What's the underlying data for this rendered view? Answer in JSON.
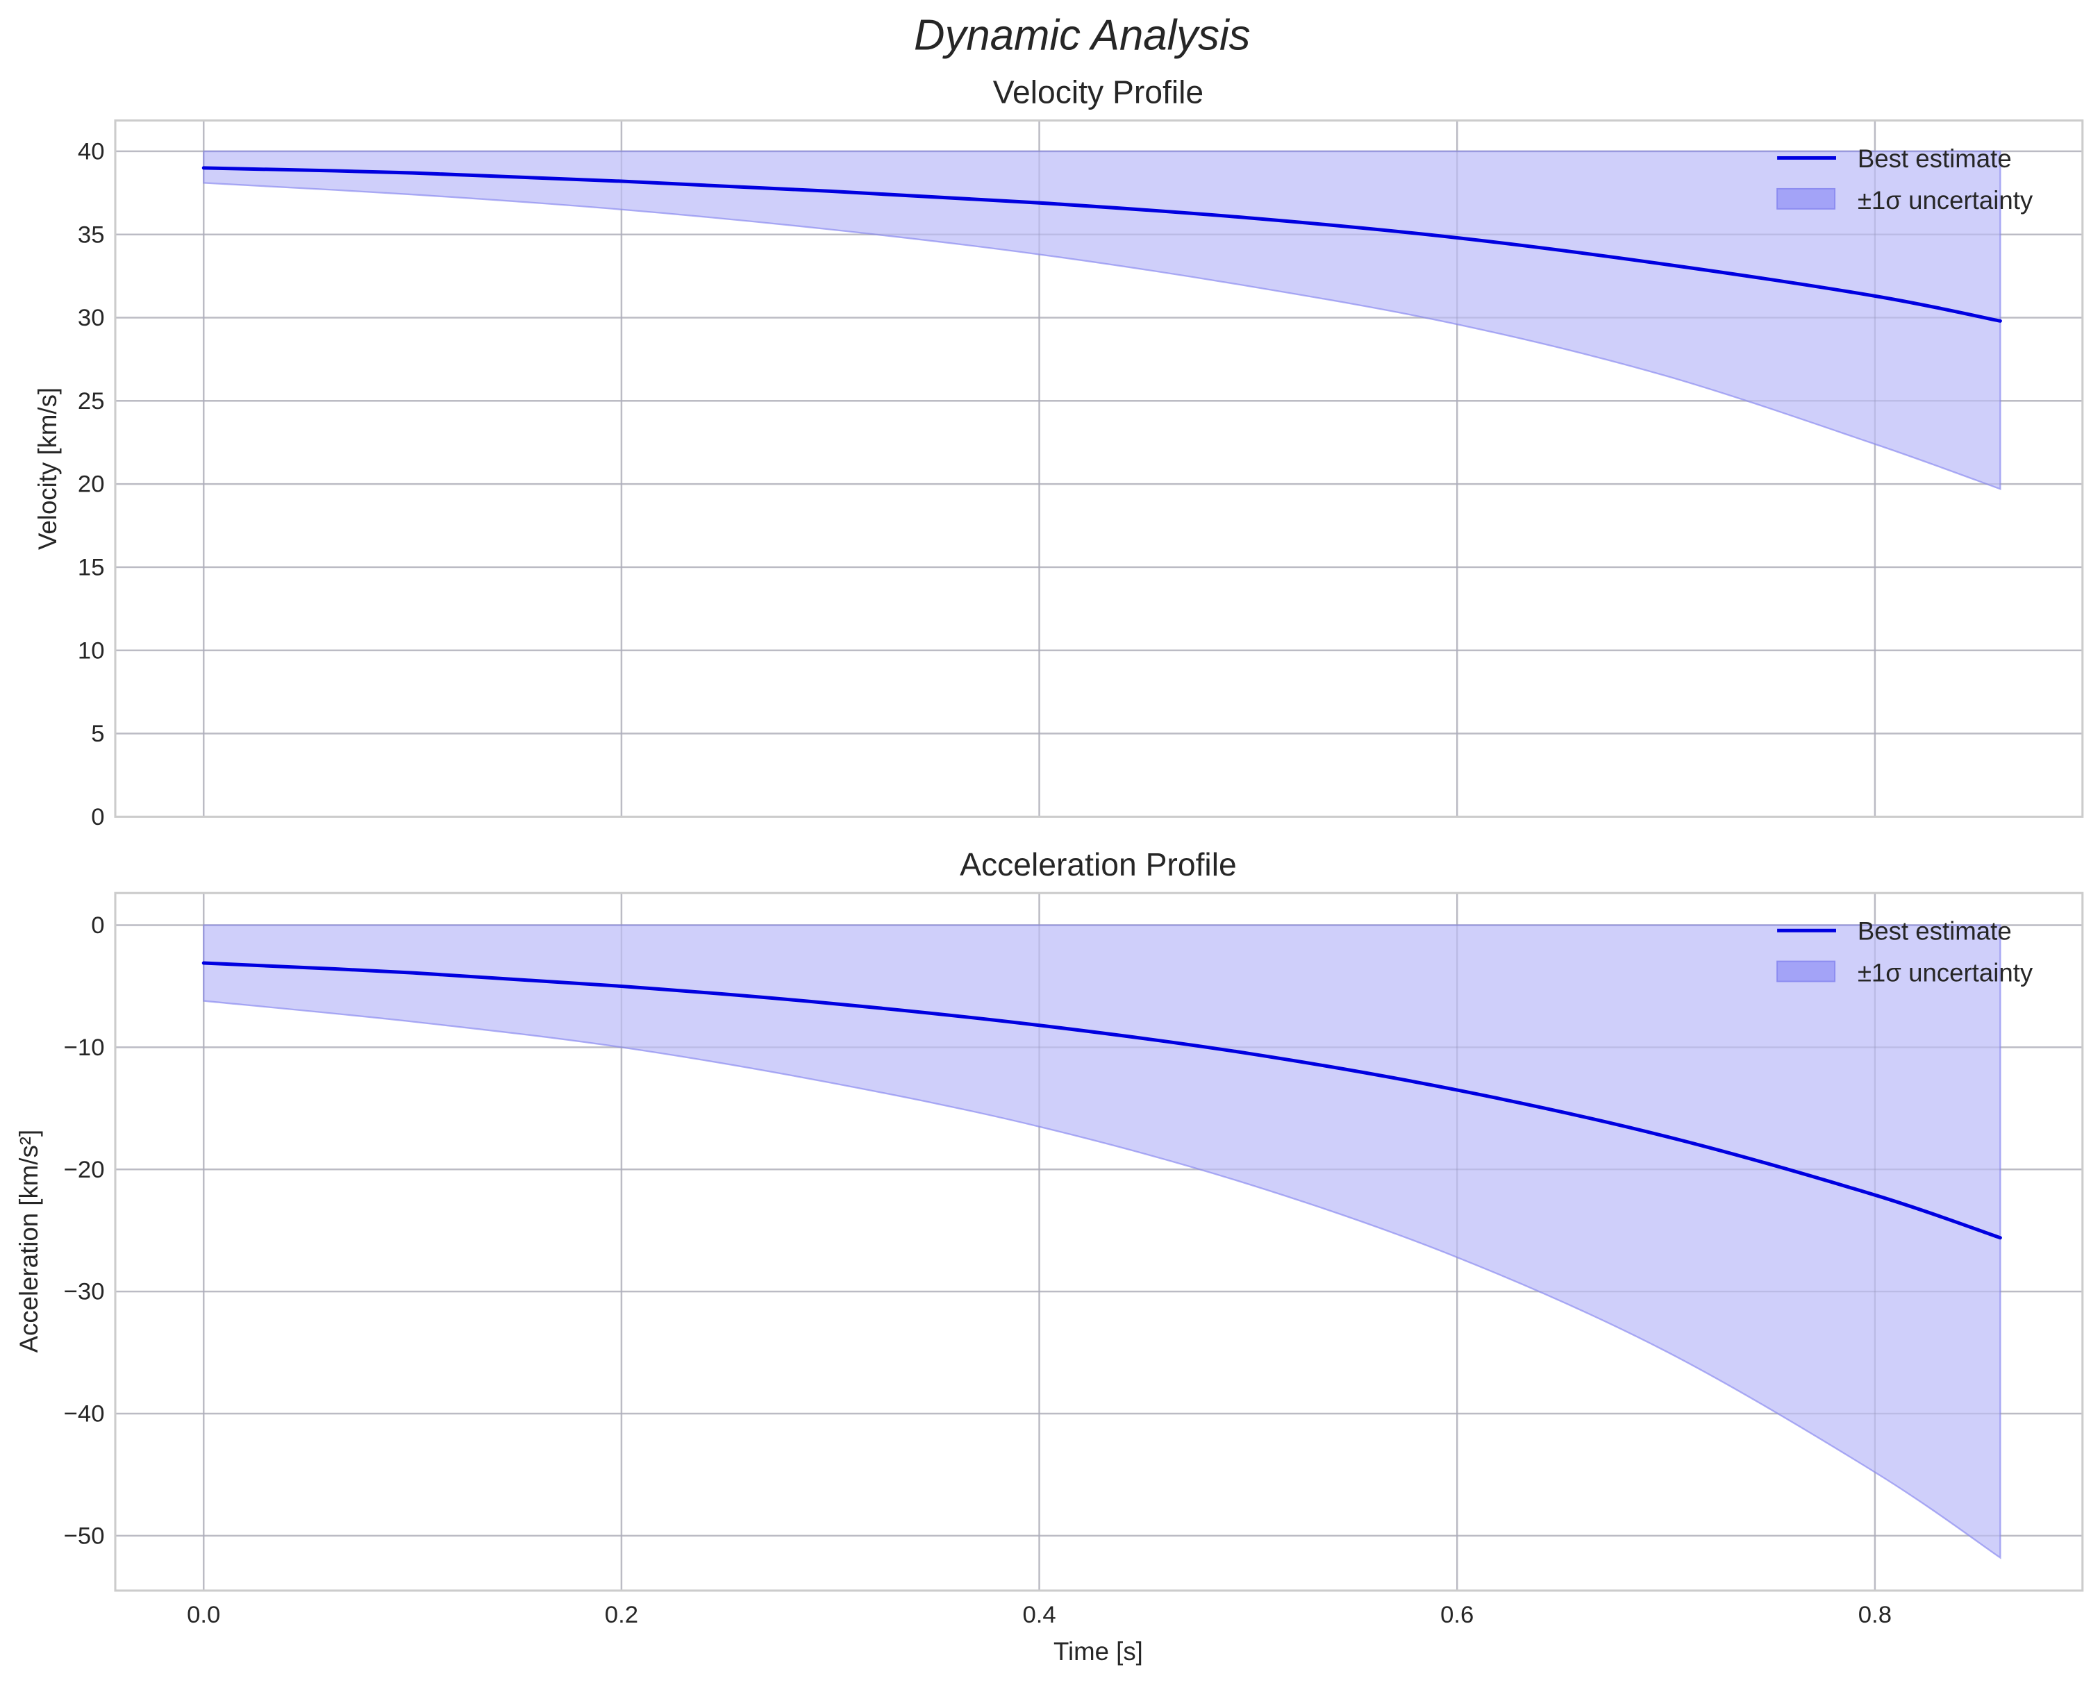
{
  "figure": {
    "suptitle": "Dynamic Analysis"
  },
  "colors": {
    "line": "#0000e0",
    "band_fill": "#ccccfa",
    "band_edge": "#8c8cf0",
    "legend_patch": "#a3a3f7",
    "grid": "#cccccc",
    "text": "#262626"
  },
  "panels": [
    {
      "title": "Velocity Profile",
      "ylabel": "Velocity [km/s]",
      "yticks": [
        "0",
        "5",
        "10",
        "15",
        "20",
        "25",
        "30",
        "35",
        "40"
      ],
      "legend": {
        "line_label": "Best estimate",
        "band_label": "±1σ uncertainty"
      }
    },
    {
      "title": "Acceleration Profile",
      "ylabel": "Acceleration [km/s²]",
      "yticks": [
        "0",
        "−10",
        "−20",
        "−30",
        "−40",
        "−50"
      ],
      "legend": {
        "line_label": "Best estimate",
        "band_label": "±1σ uncertainty"
      }
    }
  ],
  "xaxis": {
    "label": "Time [s]",
    "ticks": [
      "0.0",
      "0.2",
      "0.4",
      "0.6",
      "0.8"
    ]
  },
  "chart_data": [
    {
      "type": "line",
      "title": "Velocity Profile",
      "xlabel": "",
      "ylabel": "Velocity [km/s]",
      "x": [
        0.0,
        0.1,
        0.2,
        0.3,
        0.4,
        0.5,
        0.6,
        0.7,
        0.8,
        0.86
      ],
      "series": [
        {
          "name": "Best estimate",
          "values": [
            39.0,
            38.7,
            38.2,
            37.6,
            36.9,
            36.0,
            34.8,
            33.2,
            31.3,
            29.8
          ]
        },
        {
          "name": "±1σ uncertainty (lower)",
          "values": [
            38.1,
            37.4,
            36.5,
            35.3,
            33.8,
            31.9,
            29.6,
            26.5,
            22.4,
            19.7
          ]
        },
        {
          "name": "±1σ uncertainty (upper)",
          "values": [
            40,
            40,
            40,
            40,
            40,
            40,
            40,
            40,
            40,
            40
          ]
        }
      ],
      "xlim": [
        -0.053,
        1.125
      ],
      "ylim": [
        0,
        42
      ],
      "grid": true,
      "legend_position": "upper right"
    },
    {
      "type": "line",
      "title": "Acceleration Profile",
      "xlabel": "Time [s]",
      "ylabel": "Acceleration [km/s²]",
      "x": [
        0.0,
        0.1,
        0.2,
        0.3,
        0.4,
        0.5,
        0.6,
        0.7,
        0.8,
        0.86
      ],
      "series": [
        {
          "name": "Best estimate",
          "values": [
            -3.1,
            -3.9,
            -5.0,
            -6.4,
            -8.2,
            -10.5,
            -13.5,
            -17.3,
            -22.1,
            -25.6
          ]
        },
        {
          "name": "±1σ uncertainty (lower)",
          "values": [
            -6.2,
            -7.9,
            -10.0,
            -12.9,
            -16.5,
            -21.2,
            -27.2,
            -34.9,
            -44.8,
            -51.8
          ]
        },
        {
          "name": "±1σ uncertainty (upper)",
          "values": [
            0,
            0,
            0,
            0,
            0,
            0,
            0,
            0,
            0,
            0
          ]
        }
      ],
      "xlim": [
        -0.053,
        1.125
      ],
      "ylim": [
        -54.4,
        2.6
      ],
      "grid": true,
      "legend_position": "upper right"
    }
  ]
}
